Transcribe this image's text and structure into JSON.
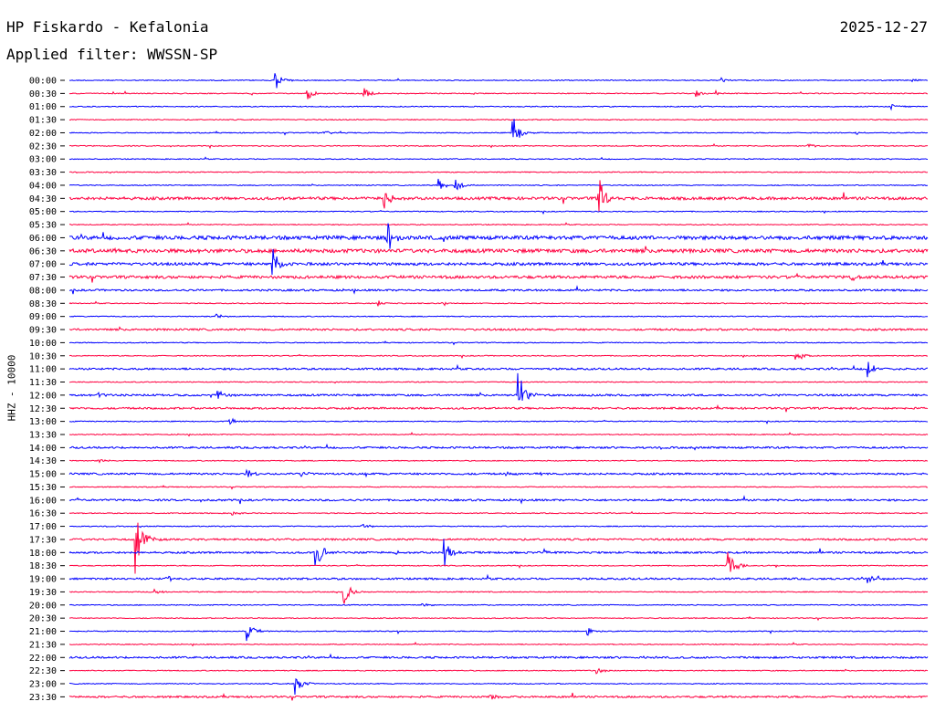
{
  "header": {
    "station": "HP Fiskardo - Kefalonia",
    "date": "2025-12-27",
    "filter_label": "Applied filter: WWSSN-SP",
    "channel_label": "HHZ - 10000"
  },
  "colors": {
    "blue": "#0000ff",
    "red": "#ff0040"
  },
  "chart_data": {
    "type": "line",
    "title": "HP Fiskardo - Kefalonia",
    "subtitle": "Applied filter: WWSSN-SP",
    "ylabel": "HHZ - 10000",
    "y_tick_labels": [
      "00:00",
      "00:30",
      "01:00",
      "01:30",
      "02:00",
      "02:30",
      "03:00",
      "03:30",
      "04:00",
      "04:30",
      "05:00",
      "05:30",
      "06:00",
      "06:30",
      "07:00",
      "07:30",
      "08:00",
      "08:30",
      "09:00",
      "09:30",
      "10:00",
      "10:30",
      "11:00",
      "11:30",
      "12:00",
      "12:30",
      "13:00",
      "13:30",
      "14:00",
      "14:30",
      "15:00",
      "15:30",
      "16:00",
      "16:30",
      "17:00",
      "17:30",
      "18:00",
      "18:30",
      "19:00",
      "19:30",
      "20:00",
      "20:30",
      "21:00",
      "21:30",
      "22:00",
      "22:30",
      "23:00",
      "23:30"
    ],
    "x_unit": "minutes within row (0-30)",
    "trace_colors": [
      "blue",
      "red"
    ],
    "noise_level": [
      1,
      1,
      1,
      1,
      1,
      1,
      1,
      1,
      1,
      3,
      1,
      1,
      4,
      4,
      3,
      3,
      2,
      1,
      1,
      2,
      1,
      1,
      2,
      1,
      2,
      2,
      1,
      1,
      2,
      1,
      2,
      1,
      2,
      1,
      1,
      2,
      2,
      1,
      2,
      1,
      1,
      1,
      1,
      1,
      2,
      1,
      1,
      2
    ],
    "events": [
      {
        "row": 0,
        "minute": 7.2,
        "amp": 11
      },
      {
        "row": 0,
        "minute": 22.8,
        "amp": 3
      },
      {
        "row": 0,
        "minute": 29.4,
        "amp": 3
      },
      {
        "row": 1,
        "minute": 8.3,
        "amp": 8
      },
      {
        "row": 1,
        "minute": 10.3,
        "amp": 9
      },
      {
        "row": 1,
        "minute": 21.9,
        "amp": 4
      },
      {
        "row": 1,
        "minute": 22.6,
        "amp": 3
      },
      {
        "row": 2,
        "minute": 28.7,
        "amp": 3
      },
      {
        "row": 4,
        "minute": 15.5,
        "amp": 20
      },
      {
        "row": 4,
        "minute": 8.9,
        "amp": 3
      },
      {
        "row": 4,
        "minute": 27.5,
        "amp": 2
      },
      {
        "row": 5,
        "minute": 25.8,
        "amp": 3
      },
      {
        "row": 8,
        "minute": 12.9,
        "amp": 7
      },
      {
        "row": 8,
        "minute": 13.5,
        "amp": 7
      },
      {
        "row": 9,
        "minute": 18.5,
        "amp": 24
      },
      {
        "row": 9,
        "minute": 11.0,
        "amp": 12
      },
      {
        "row": 12,
        "minute": 11.1,
        "amp": 18
      },
      {
        "row": 14,
        "minute": 7.1,
        "amp": 20
      },
      {
        "row": 15,
        "minute": 27.3,
        "amp": 5
      },
      {
        "row": 17,
        "minute": 10.8,
        "amp": 4
      },
      {
        "row": 17,
        "minute": 13.1,
        "amp": 3
      },
      {
        "row": 18,
        "minute": 5.1,
        "amp": 4
      },
      {
        "row": 21,
        "minute": 25.4,
        "amp": 11
      },
      {
        "row": 22,
        "minute": 27.9,
        "amp": 9
      },
      {
        "row": 24,
        "minute": 15.7,
        "amp": 28
      },
      {
        "row": 24,
        "minute": 1.0,
        "amp": 5
      },
      {
        "row": 24,
        "minute": 5.2,
        "amp": 6
      },
      {
        "row": 26,
        "minute": 5.6,
        "amp": 5
      },
      {
        "row": 29,
        "minute": 1.0,
        "amp": 3
      },
      {
        "row": 30,
        "minute": 6.2,
        "amp": 5
      },
      {
        "row": 30,
        "minute": 8.1,
        "amp": 3
      },
      {
        "row": 30,
        "minute": 15.2,
        "amp": 3
      },
      {
        "row": 30,
        "minute": 16.3,
        "amp": 3
      },
      {
        "row": 33,
        "minute": 5.7,
        "amp": 3
      },
      {
        "row": 34,
        "minute": 10.2,
        "amp": 5
      },
      {
        "row": 35,
        "minute": 2.3,
        "amp": 40
      },
      {
        "row": 36,
        "minute": 8.6,
        "amp": 22
      },
      {
        "row": 36,
        "minute": 13.1,
        "amp": 17
      },
      {
        "row": 36,
        "minute": 11.3,
        "amp": 3
      },
      {
        "row": 36,
        "minute": 16.6,
        "amp": 3
      },
      {
        "row": 37,
        "minute": 23.0,
        "amp": 22
      },
      {
        "row": 38,
        "minute": 3.4,
        "amp": 4
      },
      {
        "row": 38,
        "minute": 27.9,
        "amp": 6
      },
      {
        "row": 39,
        "minute": 9.6,
        "amp": 15
      },
      {
        "row": 39,
        "minute": 3.0,
        "amp": 3
      },
      {
        "row": 40,
        "minute": 12.3,
        "amp": 3
      },
      {
        "row": 42,
        "minute": 6.2,
        "amp": 11
      },
      {
        "row": 42,
        "minute": 18.1,
        "amp": 5
      },
      {
        "row": 44,
        "minute": 20.0,
        "amp": 2
      },
      {
        "row": 45,
        "minute": 18.4,
        "amp": 5
      },
      {
        "row": 46,
        "minute": 7.9,
        "amp": 14
      },
      {
        "row": 47,
        "minute": 14.7,
        "amp": 5
      }
    ]
  }
}
